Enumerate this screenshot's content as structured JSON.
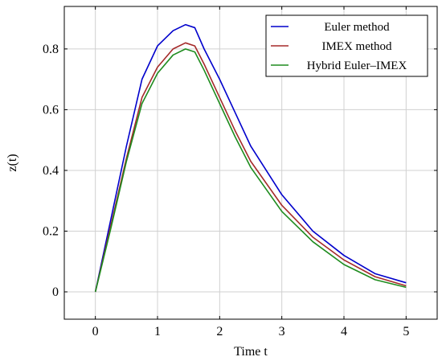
{
  "chart_data": {
    "type": "line",
    "xlabel": "Time t",
    "ylabel": "z(t)",
    "xlim": [
      -0.5,
      5.5
    ],
    "ylim": [
      -0.09,
      0.94
    ],
    "xticks": [
      0,
      1,
      2,
      3,
      4,
      5
    ],
    "yticks": [
      0,
      0.2,
      0.4,
      0.6,
      0.8
    ],
    "xtick_labels": [
      "0",
      "1",
      "2",
      "3",
      "4",
      "5"
    ],
    "ytick_labels": [
      "0",
      "0.2",
      "0.4",
      "0.6",
      "0.8"
    ],
    "grid": true,
    "legend_position": "top-right",
    "x": [
      0,
      0.25,
      0.5,
      0.75,
      1.0,
      1.25,
      1.45,
      1.6,
      1.75,
      2.0,
      2.25,
      2.5,
      3.0,
      3.5,
      4.0,
      4.5,
      5.0
    ],
    "series": [
      {
        "name": "Euler method",
        "color": "#0000cc",
        "values": [
          0.0,
          0.24,
          0.48,
          0.7,
          0.81,
          0.86,
          0.88,
          0.87,
          0.8,
          0.7,
          0.59,
          0.48,
          0.32,
          0.2,
          0.12,
          0.06,
          0.03
        ]
      },
      {
        "name": "IMEX method",
        "color": "#a52a2a",
        "values": [
          0.0,
          0.22,
          0.44,
          0.64,
          0.74,
          0.8,
          0.82,
          0.81,
          0.75,
          0.64,
          0.53,
          0.43,
          0.285,
          0.18,
          0.105,
          0.05,
          0.02
        ]
      },
      {
        "name": "Hybrid Euler–IMEX",
        "color": "#1e8c1e",
        "values": [
          0.0,
          0.21,
          0.43,
          0.62,
          0.72,
          0.78,
          0.8,
          0.79,
          0.73,
          0.62,
          0.51,
          0.41,
          0.265,
          0.165,
          0.09,
          0.04,
          0.015
        ]
      }
    ]
  }
}
